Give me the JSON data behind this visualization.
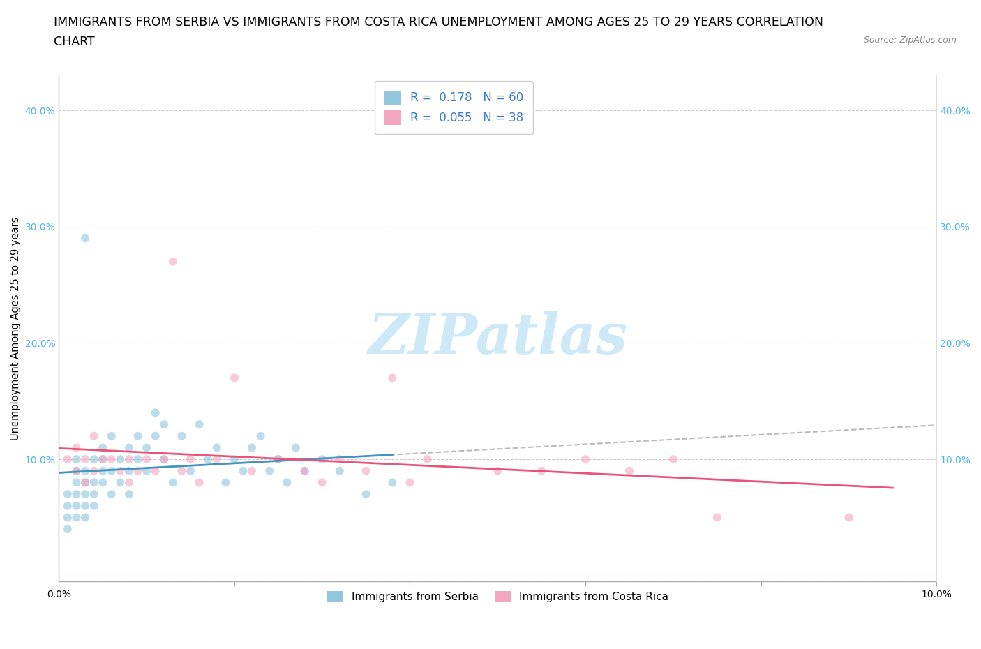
{
  "title_line1": "IMMIGRANTS FROM SERBIA VS IMMIGRANTS FROM COSTA RICA UNEMPLOYMENT AMONG AGES 25 TO 29 YEARS CORRELATION",
  "title_line2": "CHART",
  "source_text": "Source: ZipAtlas.com",
  "ylabel": "Unemployment Among Ages 25 to 29 years",
  "xlim": [
    0.0,
    0.1
  ],
  "ylim": [
    -0.005,
    0.43
  ],
  "y_ticks": [
    0.0,
    0.1,
    0.2,
    0.3,
    0.4
  ],
  "y_tick_labels": [
    "",
    "10.0%",
    "20.0%",
    "30.0%",
    "40.0%"
  ],
  "x_ticks": [
    0.0,
    0.02,
    0.04,
    0.06,
    0.08,
    0.1
  ],
  "x_tick_labels": [
    "0.0%",
    "",
    "",
    "",
    "",
    "10.0%"
  ],
  "serbia_R": 0.178,
  "serbia_N": 60,
  "costa_rica_R": 0.055,
  "costa_rica_N": 38,
  "serbia_color": "#92c5de",
  "costa_rica_color": "#f4a6bf",
  "serbia_line_color": "#4393c3",
  "costa_rica_line_color": "#e8537a",
  "dashed_line_color": "#bbbbbb",
  "background_color": "#ffffff",
  "watermark_text": "ZIPatlas",
  "watermark_color": "#cde8f7",
  "tick_color": "#4eb3e8",
  "serbia_scatter_x": [
    0.001,
    0.001,
    0.001,
    0.001,
    0.002,
    0.002,
    0.002,
    0.002,
    0.002,
    0.002,
    0.003,
    0.003,
    0.003,
    0.003,
    0.003,
    0.003,
    0.004,
    0.004,
    0.004,
    0.004,
    0.005,
    0.005,
    0.005,
    0.005,
    0.006,
    0.006,
    0.006,
    0.007,
    0.007,
    0.008,
    0.008,
    0.008,
    0.009,
    0.009,
    0.01,
    0.01,
    0.011,
    0.011,
    0.012,
    0.012,
    0.013,
    0.014,
    0.015,
    0.016,
    0.017,
    0.018,
    0.019,
    0.02,
    0.021,
    0.022,
    0.023,
    0.024,
    0.025,
    0.026,
    0.027,
    0.028,
    0.03,
    0.032,
    0.035,
    0.038
  ],
  "serbia_scatter_y": [
    0.06,
    0.05,
    0.07,
    0.04,
    0.07,
    0.08,
    0.09,
    0.06,
    0.05,
    0.1,
    0.08,
    0.07,
    0.09,
    0.06,
    0.29,
    0.05,
    0.07,
    0.08,
    0.1,
    0.06,
    0.09,
    0.1,
    0.11,
    0.08,
    0.12,
    0.09,
    0.07,
    0.08,
    0.1,
    0.09,
    0.11,
    0.07,
    0.1,
    0.12,
    0.09,
    0.11,
    0.12,
    0.14,
    0.1,
    0.13,
    0.08,
    0.12,
    0.09,
    0.13,
    0.1,
    0.11,
    0.08,
    0.1,
    0.09,
    0.11,
    0.12,
    0.09,
    0.1,
    0.08,
    0.11,
    0.09,
    0.1,
    0.09,
    0.07,
    0.08
  ],
  "costa_rica_scatter_x": [
    0.001,
    0.002,
    0.002,
    0.003,
    0.003,
    0.004,
    0.004,
    0.005,
    0.006,
    0.007,
    0.008,
    0.008,
    0.009,
    0.01,
    0.011,
    0.012,
    0.013,
    0.014,
    0.015,
    0.016,
    0.018,
    0.02,
    0.022,
    0.025,
    0.028,
    0.03,
    0.032,
    0.035,
    0.038,
    0.04,
    0.042,
    0.05,
    0.055,
    0.06,
    0.065,
    0.07,
    0.075,
    0.09
  ],
  "costa_rica_scatter_y": [
    0.1,
    0.09,
    0.11,
    0.08,
    0.1,
    0.12,
    0.09,
    0.1,
    0.1,
    0.09,
    0.08,
    0.1,
    0.09,
    0.1,
    0.09,
    0.1,
    0.27,
    0.09,
    0.1,
    0.08,
    0.1,
    0.17,
    0.09,
    0.1,
    0.09,
    0.08,
    0.1,
    0.09,
    0.17,
    0.08,
    0.1,
    0.09,
    0.09,
    0.1,
    0.09,
    0.1,
    0.05,
    0.05
  ],
  "legend_serbia_label": "Immigrants from Serbia",
  "legend_costa_rica_label": "Immigrants from Costa Rica",
  "marker_size": 75,
  "marker_alpha": 0.6,
  "title_fontsize": 12.5,
  "axis_label_fontsize": 10.5,
  "tick_fontsize": 10,
  "legend_fontsize": 12
}
